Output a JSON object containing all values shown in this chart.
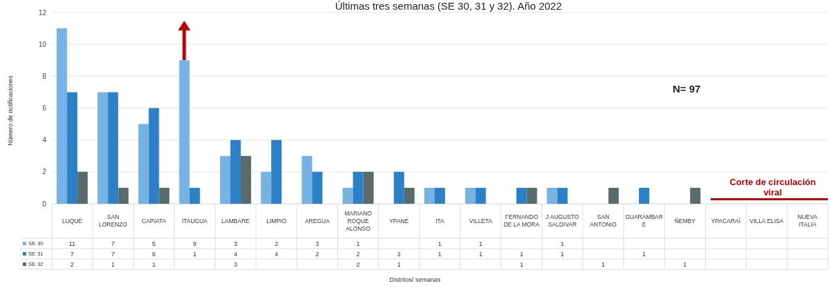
{
  "chart_data": {
    "type": "bar",
    "title": "Últimas tres semanas (SE 30, 31 y 32). Año 2022",
    "ylabel": "Número de notificaciones",
    "categories": [
      "LUQUE",
      "SAN LORENZO",
      "CAPIATA",
      "ITAUGUA",
      "LAMBARE",
      "LIMPIO",
      "AREGUA",
      "MARIANO ROQUE ALONSO",
      "YPANE",
      "ITA",
      "VILLETA",
      "FERNANDO DE LA MORA",
      "J AUGUSTO SALDIVAR",
      "SAN ANTONIO",
      "GUARAMBARE",
      "ÑEMBY",
      "YPACARAÍ",
      "VILLA ELISA",
      "NUEVA ITALIA"
    ],
    "series": [
      {
        "name": "SE 30",
        "color": "#74b3e3",
        "values": [
          11,
          7,
          5,
          9,
          3,
          2,
          3,
          1,
          null,
          1,
          1,
          null,
          1,
          null,
          null,
          null,
          null,
          null,
          null
        ]
      },
      {
        "name": "SE 31",
        "color": "#2a81c8",
        "values": [
          7,
          7,
          6,
          1,
          4,
          4,
          2,
          2,
          2,
          1,
          1,
          1,
          1,
          null,
          1,
          null,
          null,
          null,
          null
        ]
      },
      {
        "name": "SE 32",
        "color": "#5b6b6b",
        "values": [
          2,
          1,
          1,
          null,
          3,
          null,
          null,
          2,
          1,
          null,
          null,
          1,
          null,
          1,
          null,
          1,
          null,
          null,
          null
        ]
      }
    ],
    "ylim": [
      0,
      12
    ],
    "yticks": [
      0,
      2,
      4,
      6,
      8,
      10,
      12
    ],
    "grid": "y",
    "legend": "bottom",
    "data_labels": true,
    "annotations": [
      "N= 97",
      "Corte de circulación viral",
      "Distritos/ semanas"
    ]
  }
}
